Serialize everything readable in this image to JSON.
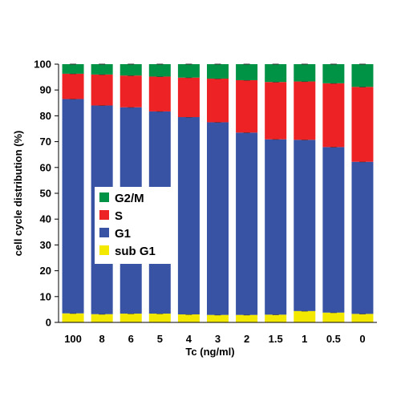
{
  "chart_data": {
    "type": "bar",
    "stacked": true,
    "xlabel": "Tc (ng/ml)",
    "ylabel": "cell cycle distribution (%)",
    "ylim": [
      0,
      100
    ],
    "yticks": [
      0,
      10,
      20,
      30,
      40,
      50,
      60,
      70,
      80,
      90,
      100
    ],
    "categories": [
      "100",
      "8",
      "6",
      "5",
      "4",
      "3",
      "2",
      "1.5",
      "1",
      "0.5",
      "0"
    ],
    "grid": false,
    "legend_position": "center-left",
    "series": [
      {
        "name": "sub G1",
        "color": "#f2e800",
        "values": [
          3.5,
          3.2,
          3.4,
          3.4,
          3.1,
          2.9,
          2.9,
          3.0,
          4.4,
          3.8,
          3.3
        ]
      },
      {
        "name": "G1",
        "color": "#3953a4",
        "values": [
          83.0,
          80.8,
          79.9,
          78.3,
          76.4,
          74.6,
          70.6,
          67.9,
          66.3,
          64.1,
          58.9
        ]
      },
      {
        "name": "S",
        "color": "#ed2224",
        "values": [
          9.8,
          12.0,
          12.3,
          13.5,
          15.3,
          16.9,
          20.3,
          22.2,
          22.6,
          24.7,
          29.0
        ]
      },
      {
        "name": "G2/M",
        "color": "#009245",
        "values": [
          3.7,
          4.0,
          4.4,
          4.8,
          5.2,
          5.6,
          6.2,
          6.9,
          6.7,
          7.4,
          8.8
        ]
      }
    ],
    "legend_order": [
      "G2/M",
      "S",
      "G1",
      "sub G1"
    ]
  }
}
